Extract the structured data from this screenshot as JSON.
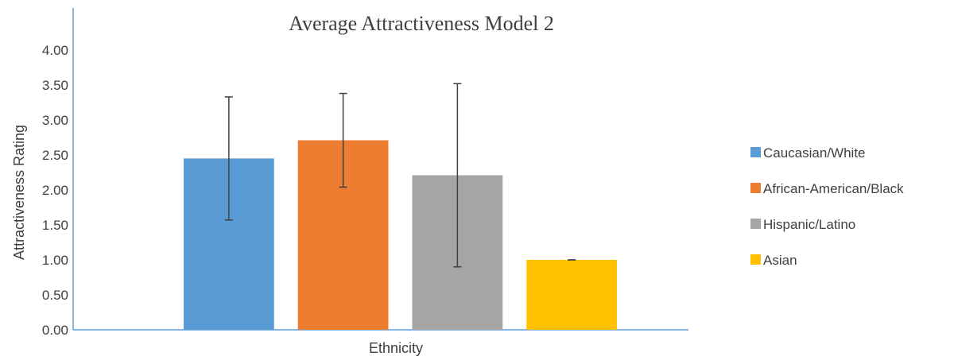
{
  "chart_data": {
    "type": "bar",
    "title": "Average Attractiveness Model 2",
    "xlabel": "Ethnicity",
    "ylabel": "Attractiveness  Rating",
    "categories": [
      "Ethnicity"
    ],
    "ylim": [
      0,
      4.5
    ],
    "yticks": [
      "0.00",
      "0.50",
      "1.00",
      "1.50",
      "2.00",
      "2.50",
      "3.00",
      "3.50",
      "4.00"
    ],
    "grid": false,
    "legend_position": "right",
    "series": [
      {
        "name": "Caucasian/White",
        "value": 2.45,
        "error_low": 1.57,
        "error_high": 3.33,
        "color": "#5b9bd5"
      },
      {
        "name": "African-American/Black",
        "value": 2.71,
        "error_low": 2.04,
        "error_high": 3.38,
        "color": "#ed7d31"
      },
      {
        "name": "Hispanic/Latino",
        "value": 2.21,
        "error_low": 0.9,
        "error_high": 3.52,
        "color": "#a5a5a5"
      },
      {
        "name": "Asian",
        "value": 1.0,
        "error_low": 1.0,
        "error_high": 1.0,
        "color": "#ffc000"
      }
    ]
  }
}
